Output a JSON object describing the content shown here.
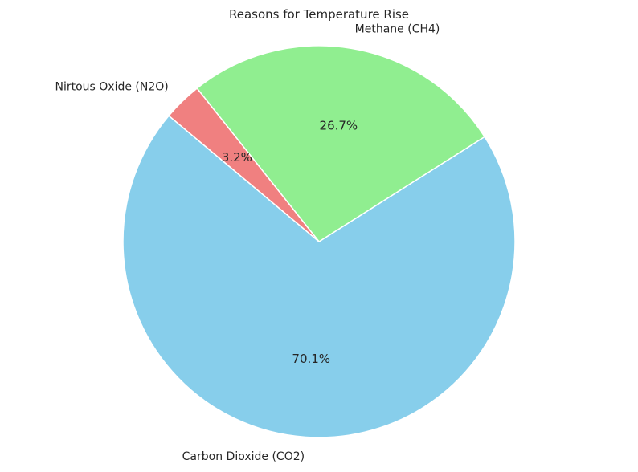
{
  "chart_data": {
    "type": "pie",
    "title": "Reasons for Temperature Rise",
    "categories": [
      "Carbon Dioxide (CO2)",
      "Methane (CH4)",
      "Nirtous Oxide (N2O)"
    ],
    "values": [
      70.1,
      26.7,
      3.2
    ],
    "percent_labels": [
      "70.1%",
      "26.7%",
      "3.2%"
    ],
    "colors": [
      "#87ceeb",
      "#90ee90",
      "#f08080"
    ],
    "start_angle_deg": 140,
    "direction": "counterclockwise",
    "legend": "none"
  }
}
